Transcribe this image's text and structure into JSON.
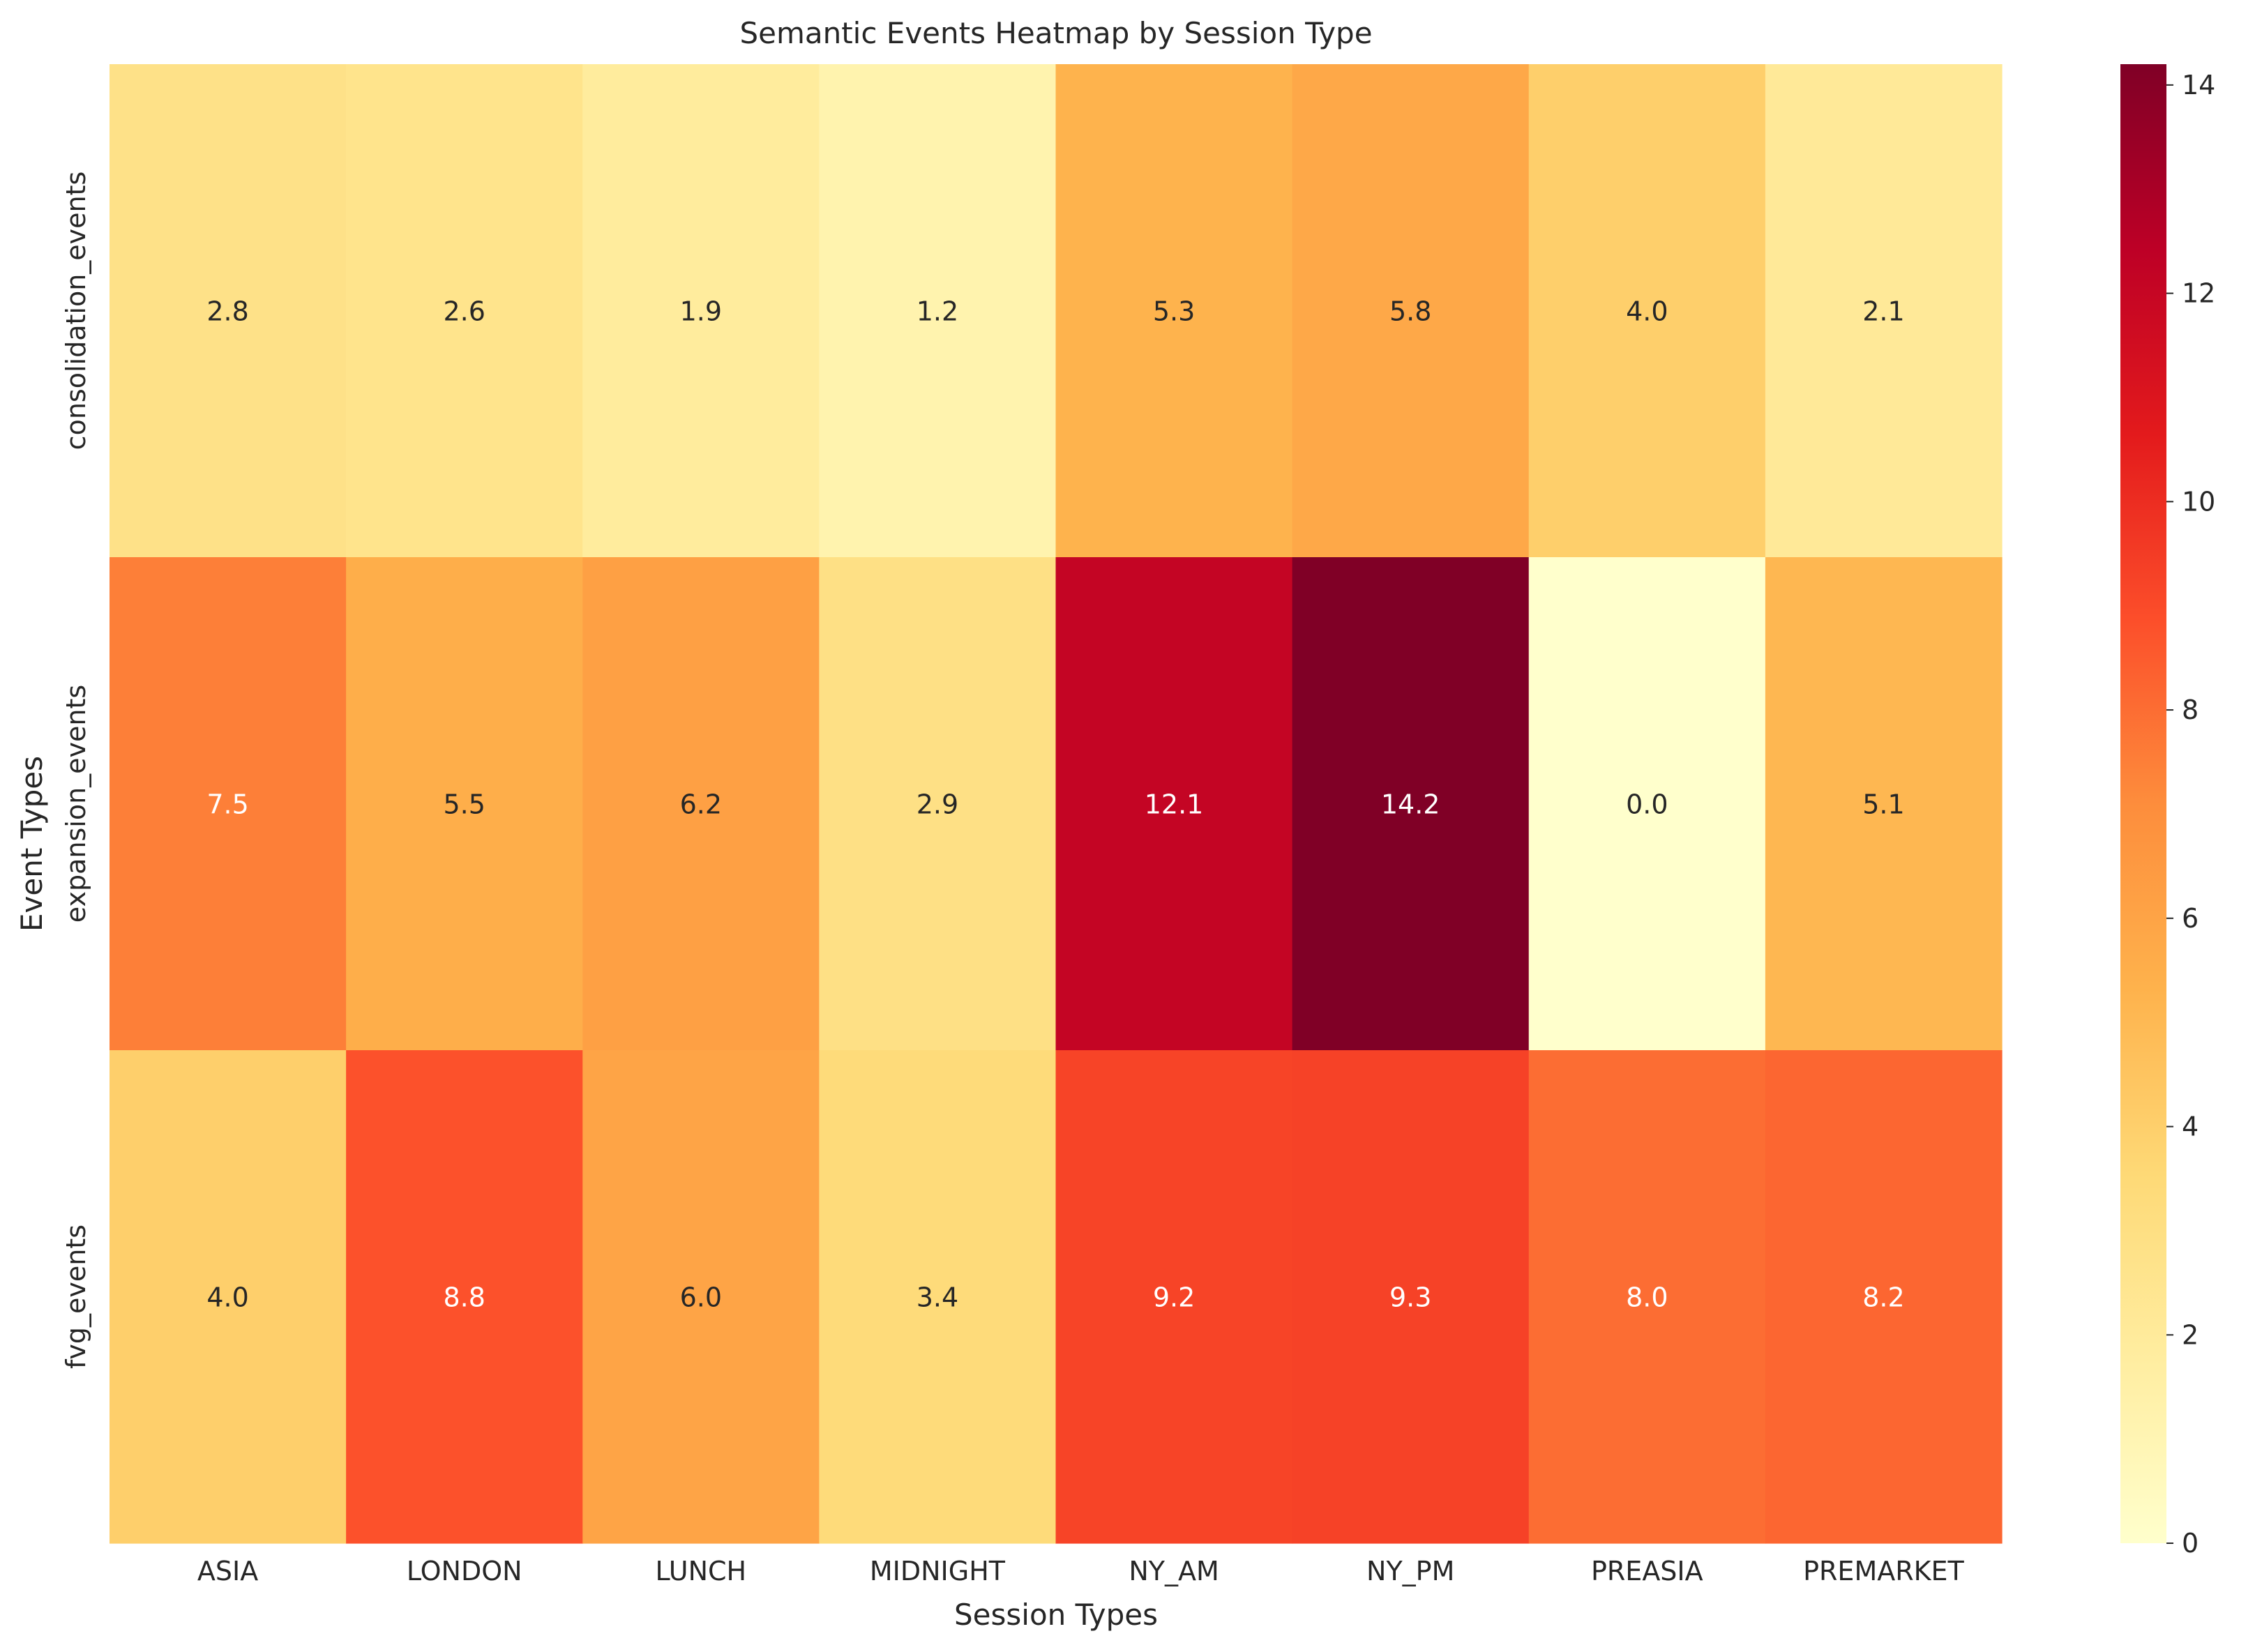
{
  "chart_data": {
    "type": "heatmap",
    "title": "Semantic Events Heatmap by Session Type",
    "xlabel": "Session Types",
    "ylabel": "Event Types",
    "x_categories": [
      "ASIA",
      "LONDON",
      "LUNCH",
      "MIDNIGHT",
      "NY_AM",
      "NY_PM",
      "PREASIA",
      "PREMARKET"
    ],
    "y_categories": [
      "consolidation_events",
      "expansion_events",
      "fvg_events"
    ],
    "values": [
      [
        2.8,
        2.6,
        1.9,
        1.2,
        5.3,
        5.8,
        4.0,
        2.1
      ],
      [
        7.5,
        5.5,
        6.2,
        2.9,
        12.1,
        14.2,
        0.0,
        5.1
      ],
      [
        4.0,
        8.8,
        6.0,
        3.4,
        9.2,
        9.3,
        8.0,
        8.2
      ]
    ],
    "value_format": "0.1f",
    "colormap": "YlOrRd",
    "colorbar": {
      "min": 0,
      "max": 14.2,
      "ticks": [
        0,
        2,
        4,
        6,
        8,
        10,
        12,
        14
      ]
    },
    "grid": false,
    "legend": "colorbar right"
  }
}
